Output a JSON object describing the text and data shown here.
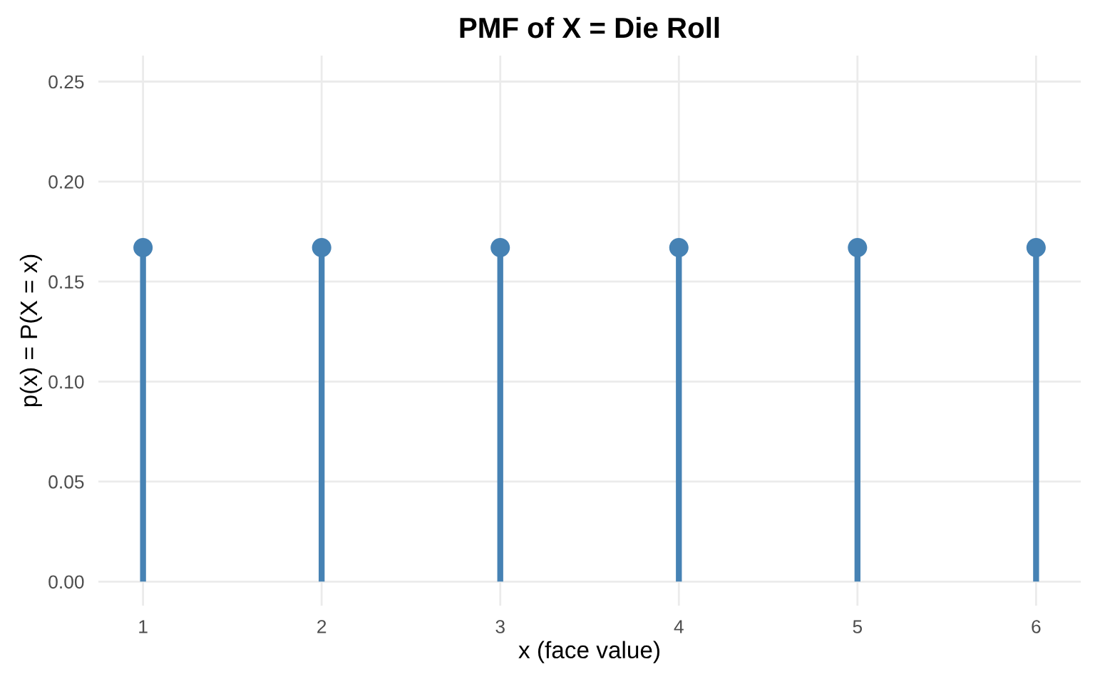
{
  "chart_data": {
    "type": "lollipop",
    "title": "PMF of X = Die Roll",
    "xlabel": "x (face value)",
    "ylabel": "p(x) = P(X = x)",
    "x": [
      1,
      2,
      3,
      4,
      5,
      6
    ],
    "series": [
      {
        "color": "#4682b4",
        "values": [
          0.167,
          0.167,
          0.167,
          0.167,
          0.167,
          0.167
        ]
      }
    ],
    "xlim": [
      0.75,
      6.25
    ],
    "xticks": [
      1,
      2,
      3,
      4,
      5,
      6
    ],
    "ylim": [
      -0.012,
      0.263
    ],
    "yticks": [
      {
        "value": 0,
        "label": "0.00"
      },
      {
        "value": 0.05,
        "label": "0.05"
      },
      {
        "value": 0.1,
        "label": "0.10"
      },
      {
        "value": 0.15,
        "label": "0.15"
      },
      {
        "value": 0.2,
        "label": "0.20"
      },
      {
        "value": 0.25,
        "label": "0.25"
      }
    ],
    "grid": true,
    "marker": "circle"
  }
}
